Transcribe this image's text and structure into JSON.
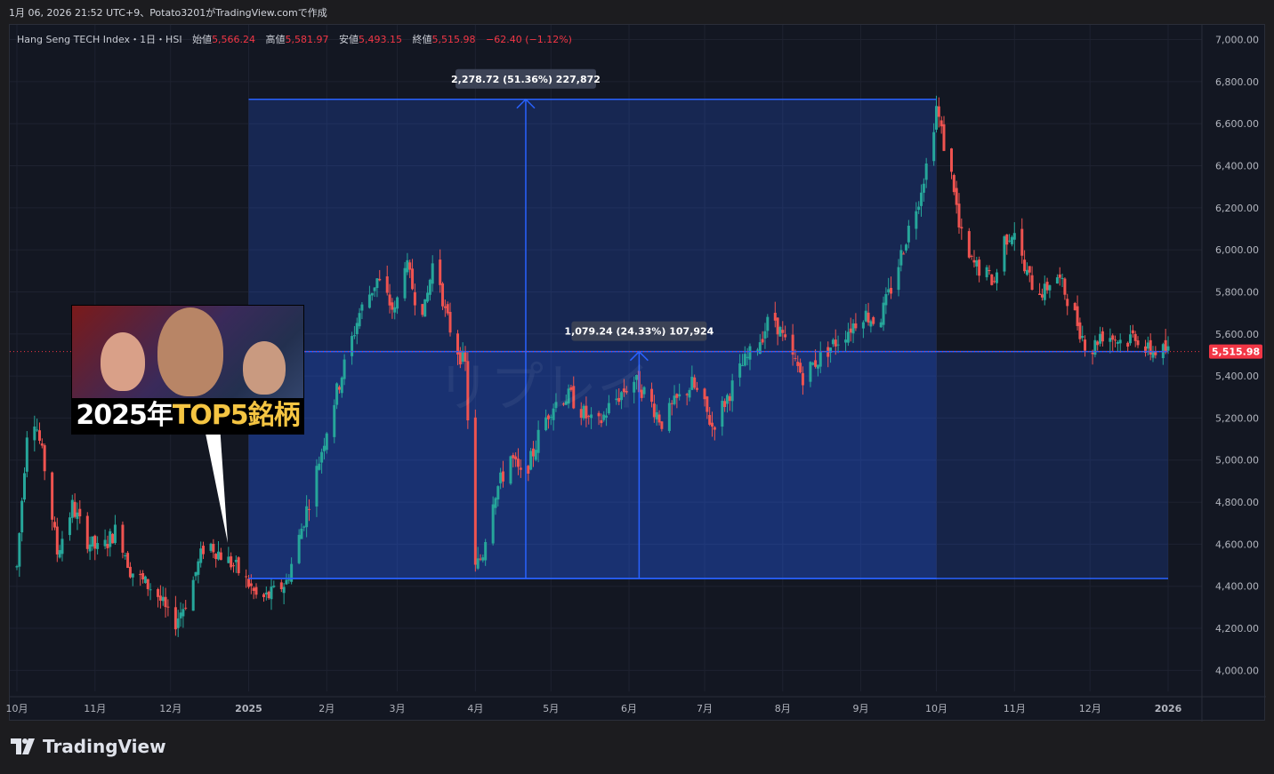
{
  "header": {
    "info": "1月 06, 2026 21:52 UTC+9、Potato3201がTradingView.comで作成"
  },
  "legend": {
    "symbol": "Hang Seng TECH Index・1日・HSI",
    "open_label": "始値",
    "open": "5,566.24",
    "high_label": "高値",
    "high": "5,581.97",
    "low_label": "安値",
    "low": "5,493.15",
    "close_label": "終値",
    "close": "5,515.98",
    "change": "−62.40 (−1.12%)"
  },
  "thumbnail": {
    "title_white": "2025年",
    "title_gold": "TOP5銘柄"
  },
  "watermark": "リプレイ",
  "logo": {
    "text": "TradingView"
  },
  "colors": {
    "up": "#26a69a",
    "down": "#ef5350",
    "measure": "#2962ff",
    "background": "#131722",
    "price_tag": "#f23645"
  },
  "chart_data": {
    "type": "candlestick",
    "title": "Hang Seng TECH Index・1日・HSI",
    "y_axis": {
      "min": 3900,
      "max": 7070,
      "ticks": [
        "7,000.00",
        "6,800.00",
        "6,600.00",
        "6,400.00",
        "6,200.00",
        "6,000.00",
        "5,800.00",
        "5,600.00",
        "5,400.00",
        "5,200.00",
        "5,000.00",
        "4,800.00",
        "4,600.00",
        "4,400.00",
        "4,200.00",
        "4,000.00"
      ],
      "tick_values": [
        7000,
        6800,
        6600,
        6400,
        6200,
        6000,
        5800,
        5600,
        5400,
        5200,
        5000,
        4800,
        4600,
        4400,
        4200,
        4000
      ]
    },
    "x_axis": {
      "labels": [
        "10月",
        "11月",
        "12月",
        "2025",
        "2月",
        "3月",
        "4月",
        "5月",
        "6月",
        "7月",
        "8月",
        "9月",
        "10月",
        "11月",
        "12月",
        "2026"
      ],
      "label_days": [
        0,
        31,
        61,
        92,
        123,
        151,
        182,
        212,
        243,
        273,
        304,
        335,
        365,
        396,
        426,
        457
      ]
    },
    "current_price": "5,515.98",
    "current_value": 5515.98,
    "price_path": [
      [
        0,
        4490
      ],
      [
        5,
        5300
      ],
      [
        8,
        5150
      ],
      [
        12,
        4900
      ],
      [
        16,
        4560
      ],
      [
        22,
        4780
      ],
      [
        28,
        4620
      ],
      [
        33,
        4560
      ],
      [
        40,
        4680
      ],
      [
        45,
        4480
      ],
      [
        50,
        4420
      ],
      [
        55,
        4380
      ],
      [
        62,
        4210
      ],
      [
        68,
        4350
      ],
      [
        75,
        4620
      ],
      [
        80,
        4560
      ],
      [
        86,
        4500
      ],
      [
        92,
        4410
      ],
      [
        96,
        4330
      ],
      [
        101,
        4360
      ],
      [
        107,
        4420
      ],
      [
        112,
        4630
      ],
      [
        118,
        4900
      ],
      [
        124,
        5200
      ],
      [
        130,
        5450
      ],
      [
        136,
        5700
      ],
      [
        143,
        5860
      ],
      [
        150,
        5700
      ],
      [
        154,
        5950
      ],
      [
        158,
        5780
      ],
      [
        162,
        5720
      ],
      [
        166,
        6000
      ],
      [
        170,
        5700
      ],
      [
        174,
        5550
      ],
      [
        178,
        5450
      ],
      [
        182,
        4480
      ],
      [
        185,
        4560
      ],
      [
        188,
        4800
      ],
      [
        192,
        4900
      ],
      [
        196,
        5020
      ],
      [
        200,
        4920
      ],
      [
        204,
        5000
      ],
      [
        208,
        5150
      ],
      [
        212,
        5250
      ],
      [
        216,
        5300
      ],
      [
        220,
        5300
      ],
      [
        225,
        5220
      ],
      [
        230,
        5150
      ],
      [
        235,
        5250
      ],
      [
        240,
        5320
      ],
      [
        245,
        5380
      ],
      [
        250,
        5310
      ],
      [
        256,
        5180
      ],
      [
        262,
        5280
      ],
      [
        268,
        5360
      ],
      [
        272,
        5280
      ],
      [
        276,
        5160
      ],
      [
        282,
        5300
      ],
      [
        288,
        5450
      ],
      [
        294,
        5550
      ],
      [
        300,
        5700
      ],
      [
        306,
        5520
      ],
      [
        312,
        5400
      ],
      [
        318,
        5480
      ],
      [
        324,
        5550
      ],
      [
        330,
        5620
      ],
      [
        336,
        5700
      ],
      [
        342,
        5650
      ],
      [
        348,
        5850
      ],
      [
        354,
        6100
      ],
      [
        358,
        6250
      ],
      [
        362,
        6450
      ],
      [
        365,
        6680
      ],
      [
        368,
        6500
      ],
      [
        372,
        6300
      ],
      [
        374,
        6100
      ],
      [
        378,
        5950
      ],
      [
        383,
        5900
      ],
      [
        388,
        5850
      ],
      [
        392,
        6050
      ],
      [
        396,
        6100
      ],
      [
        400,
        5900
      ],
      [
        404,
        5820
      ],
      [
        408,
        5800
      ],
      [
        412,
        5900
      ],
      [
        418,
        5750
      ],
      [
        422,
        5620
      ],
      [
        426,
        5500
      ],
      [
        430,
        5600
      ],
      [
        434,
        5590
      ],
      [
        440,
        5560
      ],
      [
        444,
        5600
      ],
      [
        448,
        5520
      ],
      [
        452,
        5520
      ],
      [
        457,
        5515.98
      ]
    ],
    "measurements": [
      {
        "label": "2,278.72 (51.36%) 227,872",
        "from_day": 92,
        "to_day": 365,
        "low": 4437,
        "high": 6716,
        "arrow_day": 202
      },
      {
        "label": "1,079.24 (24.33%) 107,924",
        "from_day": 92,
        "to_day": 457,
        "low": 4437,
        "high": 5516,
        "arrow_day": 247
      }
    ],
    "grid": true
  }
}
